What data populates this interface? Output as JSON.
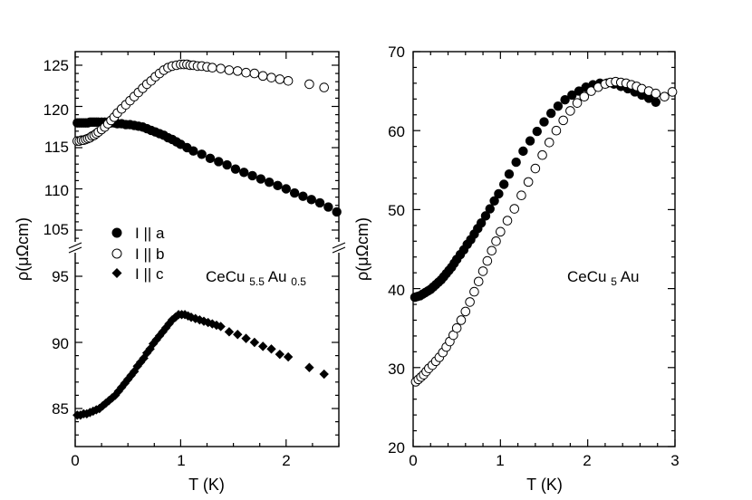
{
  "chart_data": [
    {
      "type": "scatter",
      "panel": "left",
      "xlabel": "T (K)",
      "ylabel": "ρ(μΩcm)",
      "xlim": [
        0,
        2.5
      ],
      "xticks": [
        "0",
        "1",
        "2"
      ],
      "upper_axis": {
        "ylim": [
          103,
          127
        ],
        "yticks": [
          "105",
          "110",
          "115",
          "120",
          "125"
        ]
      },
      "lower_axis": {
        "ylim": [
          82.5,
          97.5
        ],
        "yticks": [
          "85",
          "90",
          "95"
        ]
      },
      "annotation": {
        "base": "CeCu",
        "sub1": "5.5",
        "mid": "Au",
        "sub2": "0.5"
      },
      "legend": [
        {
          "label": "I || a",
          "marker": "filled-circle"
        },
        {
          "label": "I || b",
          "marker": "open-circle"
        },
        {
          "label": "I || c",
          "marker": "filled-diamond"
        }
      ],
      "series": [
        {
          "name": "I || a",
          "axis": "upper",
          "marker": "filled-circle",
          "x": [
            0.02,
            0.04,
            0.06,
            0.08,
            0.1,
            0.12,
            0.14,
            0.16,
            0.18,
            0.2,
            0.22,
            0.25,
            0.28,
            0.31,
            0.34,
            0.37,
            0.4,
            0.44,
            0.48,
            0.52,
            0.56,
            0.6,
            0.64,
            0.68,
            0.72,
            0.76,
            0.8,
            0.84,
            0.88,
            0.92,
            0.96,
            1.0,
            1.06,
            1.12,
            1.2,
            1.28,
            1.36,
            1.44,
            1.52,
            1.6,
            1.68,
            1.76,
            1.84,
            1.92,
            2.0,
            2.08,
            2.16,
            2.24,
            2.32,
            2.4,
            2.48
          ],
          "y": [
            118.0,
            118.0,
            118.0,
            118.0,
            118.0,
            118.0,
            118.1,
            118.1,
            118.1,
            118.1,
            118.1,
            118.1,
            118.1,
            118.1,
            118.0,
            118.0,
            117.9,
            117.9,
            117.8,
            117.8,
            117.7,
            117.6,
            117.5,
            117.3,
            117.1,
            116.9,
            116.7,
            116.5,
            116.2,
            116.0,
            115.7,
            115.4,
            115.0,
            114.6,
            114.2,
            113.7,
            113.3,
            112.9,
            112.4,
            112.0,
            111.6,
            111.2,
            110.8,
            110.4,
            110.0,
            109.5,
            109.1,
            108.7,
            108.3,
            107.8,
            107.2
          ]
        },
        {
          "name": "I || b",
          "axis": "upper",
          "marker": "open-circle",
          "x": [
            0.02,
            0.04,
            0.06,
            0.08,
            0.1,
            0.12,
            0.14,
            0.16,
            0.18,
            0.2,
            0.22,
            0.25,
            0.28,
            0.31,
            0.34,
            0.37,
            0.4,
            0.44,
            0.48,
            0.52,
            0.56,
            0.6,
            0.64,
            0.68,
            0.72,
            0.76,
            0.8,
            0.84,
            0.88,
            0.92,
            0.96,
            1.0,
            1.03,
            1.06,
            1.09,
            1.12,
            1.16,
            1.2,
            1.25,
            1.3,
            1.38,
            1.46,
            1.54,
            1.62,
            1.7,
            1.78,
            1.86,
            1.94,
            2.02,
            2.22,
            2.36
          ],
          "y": [
            115.8,
            115.8,
            115.9,
            115.9,
            116.0,
            116.1,
            116.2,
            116.4,
            116.5,
            116.7,
            116.9,
            117.2,
            117.5,
            117.9,
            118.3,
            118.7,
            119.2,
            119.7,
            120.2,
            120.7,
            121.2,
            121.7,
            122.2,
            122.7,
            123.1,
            123.6,
            124.0,
            124.4,
            124.7,
            124.9,
            125.0,
            125.1,
            125.1,
            125.1,
            125.0,
            125.0,
            124.9,
            124.9,
            124.8,
            124.7,
            124.6,
            124.4,
            124.3,
            124.1,
            124.0,
            123.7,
            123.5,
            123.3,
            123.1,
            122.7,
            122.3
          ]
        },
        {
          "name": "I || c",
          "axis": "lower",
          "marker": "filled-diamond",
          "x": [
            0.02,
            0.05,
            0.08,
            0.11,
            0.14,
            0.17,
            0.2,
            0.23,
            0.26,
            0.29,
            0.32,
            0.35,
            0.38,
            0.41,
            0.44,
            0.47,
            0.5,
            0.53,
            0.56,
            0.59,
            0.62,
            0.65,
            0.68,
            0.71,
            0.74,
            0.77,
            0.8,
            0.83,
            0.86,
            0.89,
            0.92,
            0.95,
            0.98,
            1.01,
            1.04,
            1.07,
            1.1,
            1.14,
            1.18,
            1.22,
            1.26,
            1.3,
            1.34,
            1.38,
            1.46,
            1.54,
            1.62,
            1.7,
            1.78,
            1.86,
            1.94,
            2.02,
            2.22,
            2.36
          ],
          "y": [
            84.5,
            84.5,
            84.6,
            84.6,
            84.7,
            84.8,
            84.9,
            85.0,
            85.2,
            85.4,
            85.6,
            85.8,
            86.0,
            86.3,
            86.6,
            86.9,
            87.2,
            87.5,
            87.8,
            88.2,
            88.5,
            88.8,
            89.2,
            89.5,
            89.9,
            90.2,
            90.5,
            90.8,
            91.1,
            91.4,
            91.7,
            91.9,
            92.1,
            92.1,
            92.1,
            92.0,
            91.9,
            91.8,
            91.7,
            91.6,
            91.5,
            91.4,
            91.3,
            91.2,
            90.8,
            90.6,
            90.3,
            90.0,
            89.7,
            89.5,
            89.1,
            88.9,
            88.1,
            87.6
          ]
        }
      ]
    },
    {
      "type": "scatter",
      "panel": "right",
      "xlabel": "T (K)",
      "ylabel": "ρ(μΩcm)",
      "xlim": [
        0,
        3
      ],
      "ylim": [
        20,
        70
      ],
      "xticks": [
        "0",
        "1",
        "2",
        "3"
      ],
      "yticks": [
        "20",
        "30",
        "40",
        "50",
        "60",
        "70"
      ],
      "annotation": {
        "base": "CeCu",
        "sub1": "5",
        "mid": "Au",
        "sub2": ""
      },
      "series": [
        {
          "name": "I || a",
          "marker": "filled-circle",
          "x": [
            0.02,
            0.05,
            0.08,
            0.11,
            0.14,
            0.17,
            0.2,
            0.23,
            0.26,
            0.29,
            0.32,
            0.35,
            0.38,
            0.41,
            0.44,
            0.47,
            0.5,
            0.54,
            0.58,
            0.62,
            0.66,
            0.7,
            0.74,
            0.78,
            0.83,
            0.88,
            0.93,
            0.98,
            1.04,
            1.1,
            1.18,
            1.26,
            1.34,
            1.42,
            1.5,
            1.58,
            1.66,
            1.74,
            1.82,
            1.9,
            1.98,
            2.06,
            2.14,
            2.22,
            2.3,
            2.38,
            2.46,
            2.54,
            2.62,
            2.7,
            2.78
          ],
          "y": [
            38.9,
            39.0,
            39.1,
            39.3,
            39.5,
            39.7,
            39.9,
            40.2,
            40.5,
            40.8,
            41.1,
            41.5,
            41.9,
            42.3,
            42.7,
            43.2,
            43.7,
            44.3,
            44.9,
            45.6,
            46.2,
            46.9,
            47.6,
            48.3,
            49.2,
            50.1,
            51.1,
            52.0,
            53.2,
            54.5,
            56.0,
            57.4,
            58.7,
            59.9,
            61.1,
            62.2,
            63.1,
            63.9,
            64.5,
            65.0,
            65.5,
            65.8,
            66.0,
            66.0,
            65.9,
            65.6,
            65.3,
            64.9,
            64.5,
            64.1,
            63.6
          ]
        },
        {
          "name": "I || b",
          "marker": "open-circle",
          "x": [
            0.03,
            0.06,
            0.09,
            0.12,
            0.15,
            0.18,
            0.22,
            0.26,
            0.3,
            0.34,
            0.38,
            0.42,
            0.46,
            0.5,
            0.55,
            0.6,
            0.65,
            0.7,
            0.75,
            0.8,
            0.85,
            0.9,
            0.95,
            1.0,
            1.08,
            1.16,
            1.24,
            1.32,
            1.4,
            1.48,
            1.56,
            1.64,
            1.72,
            1.8,
            1.88,
            1.96,
            2.04,
            2.12,
            2.2,
            2.26,
            2.32,
            2.38,
            2.44,
            2.5,
            2.56,
            2.62,
            2.7,
            2.78,
            2.88,
            2.97
          ],
          "y": [
            28.2,
            28.5,
            28.8,
            29.1,
            29.5,
            29.9,
            30.3,
            30.8,
            31.3,
            31.9,
            32.6,
            33.3,
            34.1,
            35.0,
            36.0,
            37.1,
            38.3,
            39.6,
            40.9,
            42.2,
            43.5,
            44.8,
            46.0,
            47.2,
            48.6,
            50.1,
            51.8,
            53.5,
            55.2,
            56.9,
            58.5,
            60.0,
            61.3,
            62.5,
            63.5,
            64.3,
            65.0,
            65.5,
            65.9,
            66.1,
            66.2,
            66.1,
            66.0,
            65.8,
            65.6,
            65.3,
            65.0,
            64.7,
            64.3,
            64.9
          ]
        }
      ]
    }
  ]
}
